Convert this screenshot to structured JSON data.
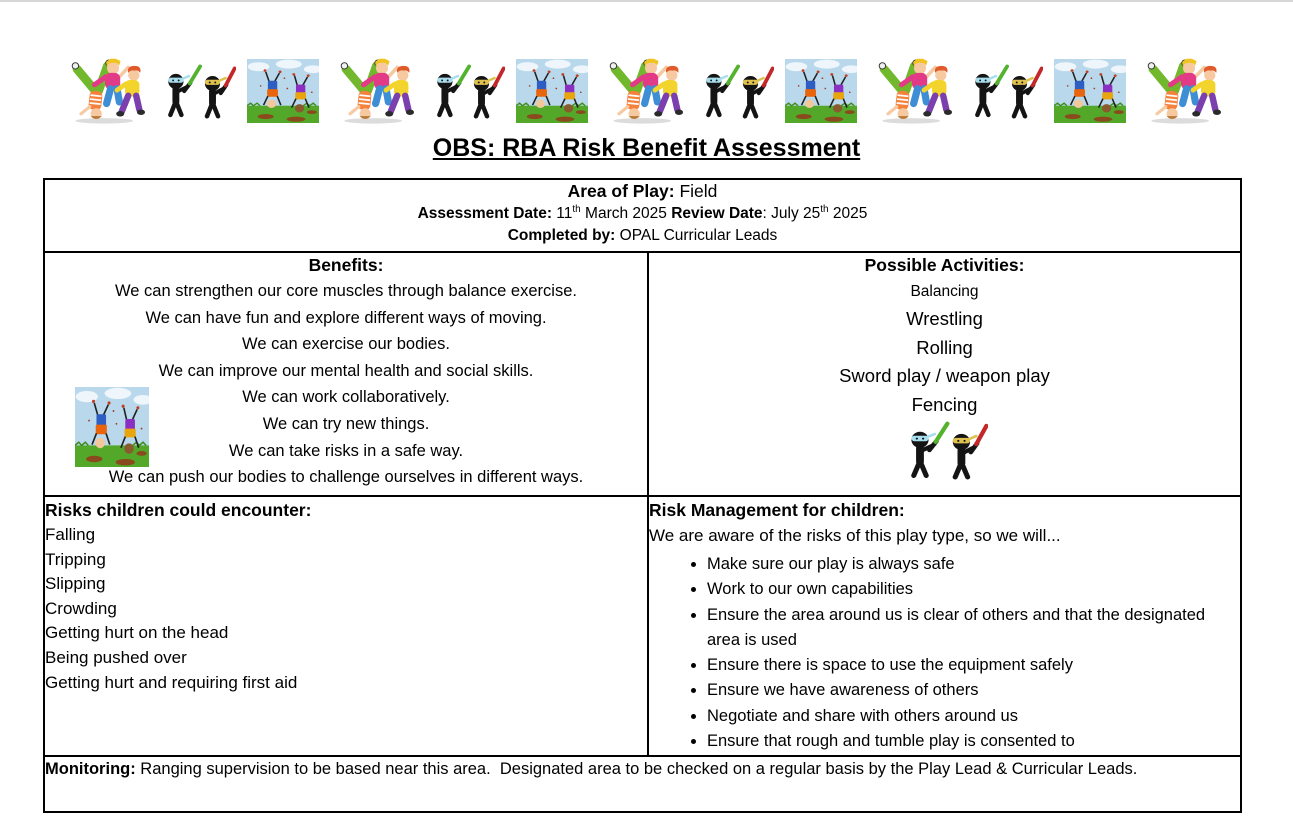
{
  "title": "OBS: RBA Risk Benefit Assessment",
  "banner": {
    "sequence": [
      "kids",
      "ninjas",
      "cartwheel",
      "kids",
      "ninjas",
      "cartwheel",
      "kids",
      "ninjas",
      "cartwheel",
      "kids",
      "ninjas",
      "cartwheel",
      "kids"
    ]
  },
  "header": {
    "area_label": "Area of Play:",
    "area_value": " Field",
    "assessment_label": "Assessment Date:",
    "assessment_value_pre": " 11",
    "assessment_sup": "th",
    "assessment_value_post": " March 2025 ",
    "review_label": "Review Date",
    "review_value_pre": ": July 25",
    "review_sup": "th",
    "review_value_post": " 2025",
    "completed_label": "Completed by:",
    "completed_value": " OPAL Curricular Leads"
  },
  "benefits": {
    "heading": "Benefits:",
    "items": [
      "We can strengthen our core muscles through balance exercise.",
      "We can have fun and explore different ways of moving.",
      "We can exercise our bodies.",
      "We can improve our mental health and social skills.",
      "We can work collaboratively.",
      "We can try new things.",
      "We can take risks in a safe way.",
      "We can push our bodies to challenge ourselves in different ways."
    ]
  },
  "activities": {
    "heading": "Possible Activities:",
    "items": [
      "Balancing",
      "Wrestling",
      "Rolling",
      "Sword play / weapon play",
      "Fencing"
    ]
  },
  "risks": {
    "heading": "Risks children could encounter:",
    "items": [
      "Falling",
      "Tripping",
      "Slipping",
      "Crowding",
      "Getting hurt on the head",
      "Being pushed over",
      "Getting hurt and requiring first aid"
    ]
  },
  "management": {
    "heading": "Risk Management for children:",
    "intro": "We are aware of the risks of this play type, so we will...",
    "items": [
      "Make sure our play is always safe",
      "Work to our own capabilities",
      "Ensure the area around us is clear of others and that the designated area is used",
      "Ensure there is space to use the equipment safely",
      "Ensure we have awareness of others",
      "Negotiate and share with others around us",
      "Ensure that rough and tumble play is consented to"
    ]
  },
  "monitoring": {
    "label": "Monitoring:",
    "text": " Ranging supervision to be based near this area.  Designated area to be checked on a regular basis by the Play Lead & Curricular Leads."
  }
}
